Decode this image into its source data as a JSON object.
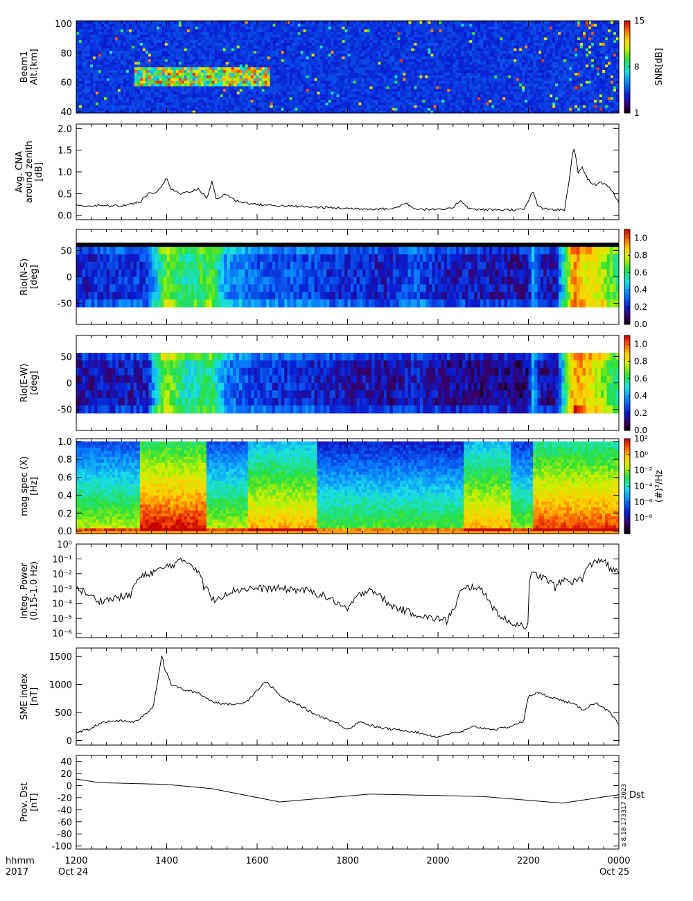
{
  "figure": {
    "time_axis": {
      "ticks": [
        "1200",
        "1400",
        "1600",
        "1800",
        "2000",
        "2200",
        "0000"
      ],
      "tick_hours": [
        12,
        14,
        16,
        18,
        20,
        22,
        24
      ],
      "start_hour": 12,
      "end_hour": 24,
      "corner_line1": "hhmm",
      "corner_line2": "2017",
      "start_date": "Oct 24",
      "end_date": "Oct 25"
    },
    "stamp": "a 8.18 173317 2023",
    "dst_label": "Dst"
  },
  "chart_data": [
    {
      "id": "beam1",
      "type": "heatmap",
      "ylabel": [
        "Beam1",
        "Alt.[km]"
      ],
      "yticks": [
        "40",
        "60",
        "80",
        "100"
      ],
      "ytick_values": [
        40,
        60,
        80,
        100
      ],
      "ylim": [
        39,
        102
      ],
      "colorbar": {
        "label": "SNR[dB]",
        "ticks": [
          "1",
          "8",
          "15"
        ],
        "range": [
          1,
          15
        ]
      },
      "description_values": {
        "enhanced_region_hours": [
          13.3,
          16.3
        ],
        "enhanced_region_alt_km": [
          57,
          70
        ]
      }
    },
    {
      "id": "cna",
      "type": "line",
      "ylabel": [
        "Avg. CNA",
        "around zenith",
        "[dB]"
      ],
      "yticks": [
        "0.0",
        "0.5",
        "1.0",
        "1.5",
        "2.0"
      ],
      "ytick_values": [
        0,
        0.5,
        1.0,
        1.5,
        2.0
      ],
      "ylim": [
        -0.1,
        2.1
      ],
      "x": [
        12.0,
        13.0,
        13.4,
        13.6,
        13.8,
        14.0,
        14.1,
        14.3,
        14.5,
        14.7,
        14.9,
        15.0,
        15.1,
        15.3,
        15.5,
        15.7,
        16.0,
        16.5,
        17.0,
        17.5,
        18.0,
        18.5,
        19.0,
        19.3,
        19.5,
        20.0,
        20.3,
        20.5,
        20.7,
        21.0,
        21.5,
        21.9,
        22.1,
        22.2,
        22.3,
        22.6,
        22.8,
        22.9,
        23.0,
        23.1,
        23.2,
        23.3,
        23.4,
        23.5,
        23.6,
        23.8,
        24.0
      ],
      "y": [
        0.22,
        0.22,
        0.3,
        0.5,
        0.55,
        0.85,
        0.6,
        0.5,
        0.55,
        0.6,
        0.4,
        0.8,
        0.35,
        0.5,
        0.35,
        0.3,
        0.25,
        0.22,
        0.2,
        0.18,
        0.16,
        0.15,
        0.15,
        0.28,
        0.15,
        0.13,
        0.15,
        0.35,
        0.15,
        0.13,
        0.13,
        0.13,
        0.55,
        0.25,
        0.15,
        0.13,
        0.12,
        0.8,
        1.6,
        1.0,
        1.1,
        0.85,
        0.75,
        0.7,
        0.75,
        0.65,
        0.3
      ]
    },
    {
      "id": "rio_ns",
      "type": "heatmap",
      "ylabel": [
        "Rio(N-S)",
        "[deg]"
      ],
      "yticks": [
        "-50",
        "0",
        "50"
      ],
      "ytick_values": [
        -50,
        0,
        50
      ],
      "ylim": [
        -90,
        90
      ],
      "data_yrange": [
        -57,
        57
      ],
      "colorbar": {
        "ticks": [
          "0.0",
          "0.2",
          "0.4",
          "0.6",
          "0.8",
          "1.0"
        ],
        "range": [
          0,
          1.1
        ]
      },
      "profile_hours": [
        12.0,
        13.6,
        13.8,
        14.0,
        14.5,
        15.0,
        15.3,
        16.0,
        17.0,
        18.0,
        19.0,
        19.5,
        20.0,
        21.0,
        22.0,
        22.1,
        22.3,
        22.6,
        23.0,
        23.2,
        23.5,
        24.0
      ],
      "profile_values": [
        0.2,
        0.25,
        0.5,
        0.7,
        0.55,
        0.65,
        0.4,
        0.3,
        0.28,
        0.22,
        0.2,
        0.3,
        0.2,
        0.18,
        0.15,
        0.4,
        0.2,
        0.15,
        0.95,
        0.85,
        0.8,
        0.6
      ]
    },
    {
      "id": "rio_ew",
      "type": "heatmap",
      "ylabel": [
        "Rio(E-W)",
        "[deg]"
      ],
      "yticks": [
        "-50",
        "0",
        "50"
      ],
      "ytick_values": [
        -50,
        0,
        50
      ],
      "ylim": [
        -90,
        90
      ],
      "data_yrange": [
        -57,
        57
      ],
      "colorbar": {
        "ticks": [
          "0.0",
          "0.2",
          "0.4",
          "0.6",
          "0.8",
          "1.0"
        ],
        "range": [
          0,
          1.1
        ]
      },
      "profile_hours": [
        12.0,
        13.6,
        13.8,
        14.0,
        14.5,
        15.0,
        15.3,
        16.0,
        17.0,
        18.0,
        19.0,
        19.5,
        20.0,
        21.0,
        22.0,
        22.1,
        22.3,
        22.6,
        23.0,
        23.2,
        23.5,
        24.0
      ],
      "profile_values": [
        0.15,
        0.2,
        0.55,
        0.75,
        0.5,
        0.6,
        0.35,
        0.25,
        0.22,
        0.18,
        0.15,
        0.2,
        0.15,
        0.13,
        0.12,
        0.4,
        0.15,
        0.12,
        0.95,
        0.9,
        0.8,
        0.55
      ]
    },
    {
      "id": "magspec",
      "type": "heatmap",
      "ylabel": [
        "mag spec (X)",
        "[Hz]"
      ],
      "yticks": [
        "0.0",
        "0.2",
        "0.4",
        "0.6",
        "0.8",
        "1.0"
      ],
      "ytick_values": [
        0,
        0.2,
        0.4,
        0.6,
        0.8,
        1.0
      ],
      "ylim": [
        -0.03,
        1.03
      ],
      "colorbar": {
        "label": "(#)²/Hz",
        "ticks": [
          "10⁻⁸",
          "10⁻⁶",
          "10⁻⁴",
          "10⁻²",
          "10⁰",
          "10²"
        ],
        "tick_log10": [
          -8,
          -6,
          -4,
          -2,
          0,
          2
        ],
        "range_log10": [
          -10,
          2
        ]
      }
    },
    {
      "id": "integ_power",
      "type": "line",
      "ylabel": [
        "Integ. Power",
        "(0.15-1.0 Hz)"
      ],
      "yticks": [
        "10⁻⁶",
        "10⁻⁵",
        "10⁻⁴",
        "10⁻³",
        "10⁻²",
        "10⁻¹",
        "10⁰"
      ],
      "ytick_log10": [
        -6,
        -5,
        -4,
        -3,
        -2,
        -1,
        0
      ],
      "ylim_log10": [
        -6.3,
        0
      ],
      "x": [
        12.0,
        12.3,
        12.5,
        12.8,
        13.0,
        13.2,
        13.3,
        13.6,
        13.9,
        14.2,
        14.4,
        14.6,
        14.8,
        15.0,
        15.2,
        15.5,
        15.8,
        16.0,
        16.5,
        17.0,
        17.3,
        17.6,
        17.9,
        18.0,
        18.2,
        18.5,
        18.7,
        18.9,
        19.1,
        19.3,
        19.5,
        19.8,
        20.0,
        20.2,
        20.4,
        20.6,
        20.8,
        21.0,
        21.2,
        21.4,
        21.6,
        21.8,
        22.0,
        22.1,
        22.2,
        22.4,
        22.6,
        22.8,
        23.0,
        23.2,
        23.4,
        23.6,
        23.8,
        24.0
      ],
      "y": [
        0.001,
        0.0003,
        0.00015,
        0.0002,
        0.0003,
        0.0003,
        0.002,
        0.01,
        0.02,
        0.05,
        0.08,
        0.03,
        0.0015,
        0.00015,
        0.0003,
        0.0008,
        0.001,
        0.001,
        0.001,
        0.0008,
        0.0005,
        0.0002,
        5e-05,
        3e-05,
        0.0002,
        0.001,
        0.0003,
        8e-05,
        5e-05,
        3e-05,
        2e-05,
        1e-05,
        1e-05,
        6e-06,
        5e-05,
        0.001,
        0.0015,
        0.0005,
        5e-05,
        1e-05,
        5e-06,
        4e-06,
        3e-06,
        0.01,
        0.008,
        0.004,
        0.001,
        0.004,
        0.003,
        0.005,
        0.04,
        0.1,
        0.02,
        0.01
      ]
    },
    {
      "id": "sme",
      "type": "line",
      "ylabel": [
        "SME index",
        "[nT]"
      ],
      "yticks": [
        "0",
        "500",
        "1000",
        "1500"
      ],
      "ytick_values": [
        0,
        500,
        1000,
        1500
      ],
      "ylim": [
        -80,
        1650
      ],
      "x": [
        12.0,
        12.3,
        12.5,
        12.8,
        13.0,
        13.3,
        13.5,
        13.7,
        13.9,
        13.95,
        14.1,
        14.4,
        14.7,
        15.0,
        15.3,
        15.6,
        15.8,
        16.0,
        16.2,
        16.4,
        16.5,
        16.7,
        16.9,
        17.2,
        17.5,
        17.8,
        18.0,
        18.3,
        18.4,
        18.6,
        18.8,
        19.0,
        19.3,
        19.5,
        19.8,
        20.0,
        20.2,
        20.5,
        20.8,
        21.0,
        21.3,
        21.6,
        21.9,
        22.0,
        22.2,
        22.4,
        22.6,
        22.8,
        23.0,
        23.2,
        23.5,
        23.8,
        24.0
      ],
      "y": [
        150,
        200,
        300,
        350,
        350,
        330,
        450,
        600,
        1550,
        1300,
        1000,
        900,
        850,
        700,
        650,
        650,
        720,
        900,
        1050,
        900,
        800,
        700,
        650,
        500,
        400,
        300,
        200,
        350,
        300,
        250,
        220,
        200,
        180,
        150,
        100,
        60,
        120,
        150,
        250,
        220,
        200,
        250,
        350,
        800,
        850,
        800,
        750,
        700,
        650,
        550,
        680,
        500,
        280
      ]
    },
    {
      "id": "dst",
      "type": "line",
      "ylabel": [
        "Prov. Dst",
        "[nT]"
      ],
      "yticks": [
        "-100",
        "-80",
        "-60",
        "-40",
        "-20",
        "0",
        "20",
        "40"
      ],
      "ytick_values": [
        -100,
        -80,
        -60,
        -40,
        -20,
        0,
        20,
        40
      ],
      "ylim": [
        -105,
        50
      ],
      "x": [
        12.0,
        12.5,
        13.0,
        14.0,
        15.0,
        16.5,
        18.5,
        21.0,
        22.75,
        24.0
      ],
      "y": [
        11,
        5,
        4,
        2,
        -5,
        -27,
        -14,
        -18,
        -29,
        -15
      ]
    }
  ],
  "colors": {
    "axis": "#000000",
    "line": "#000000",
    "background": "#ffffff"
  }
}
